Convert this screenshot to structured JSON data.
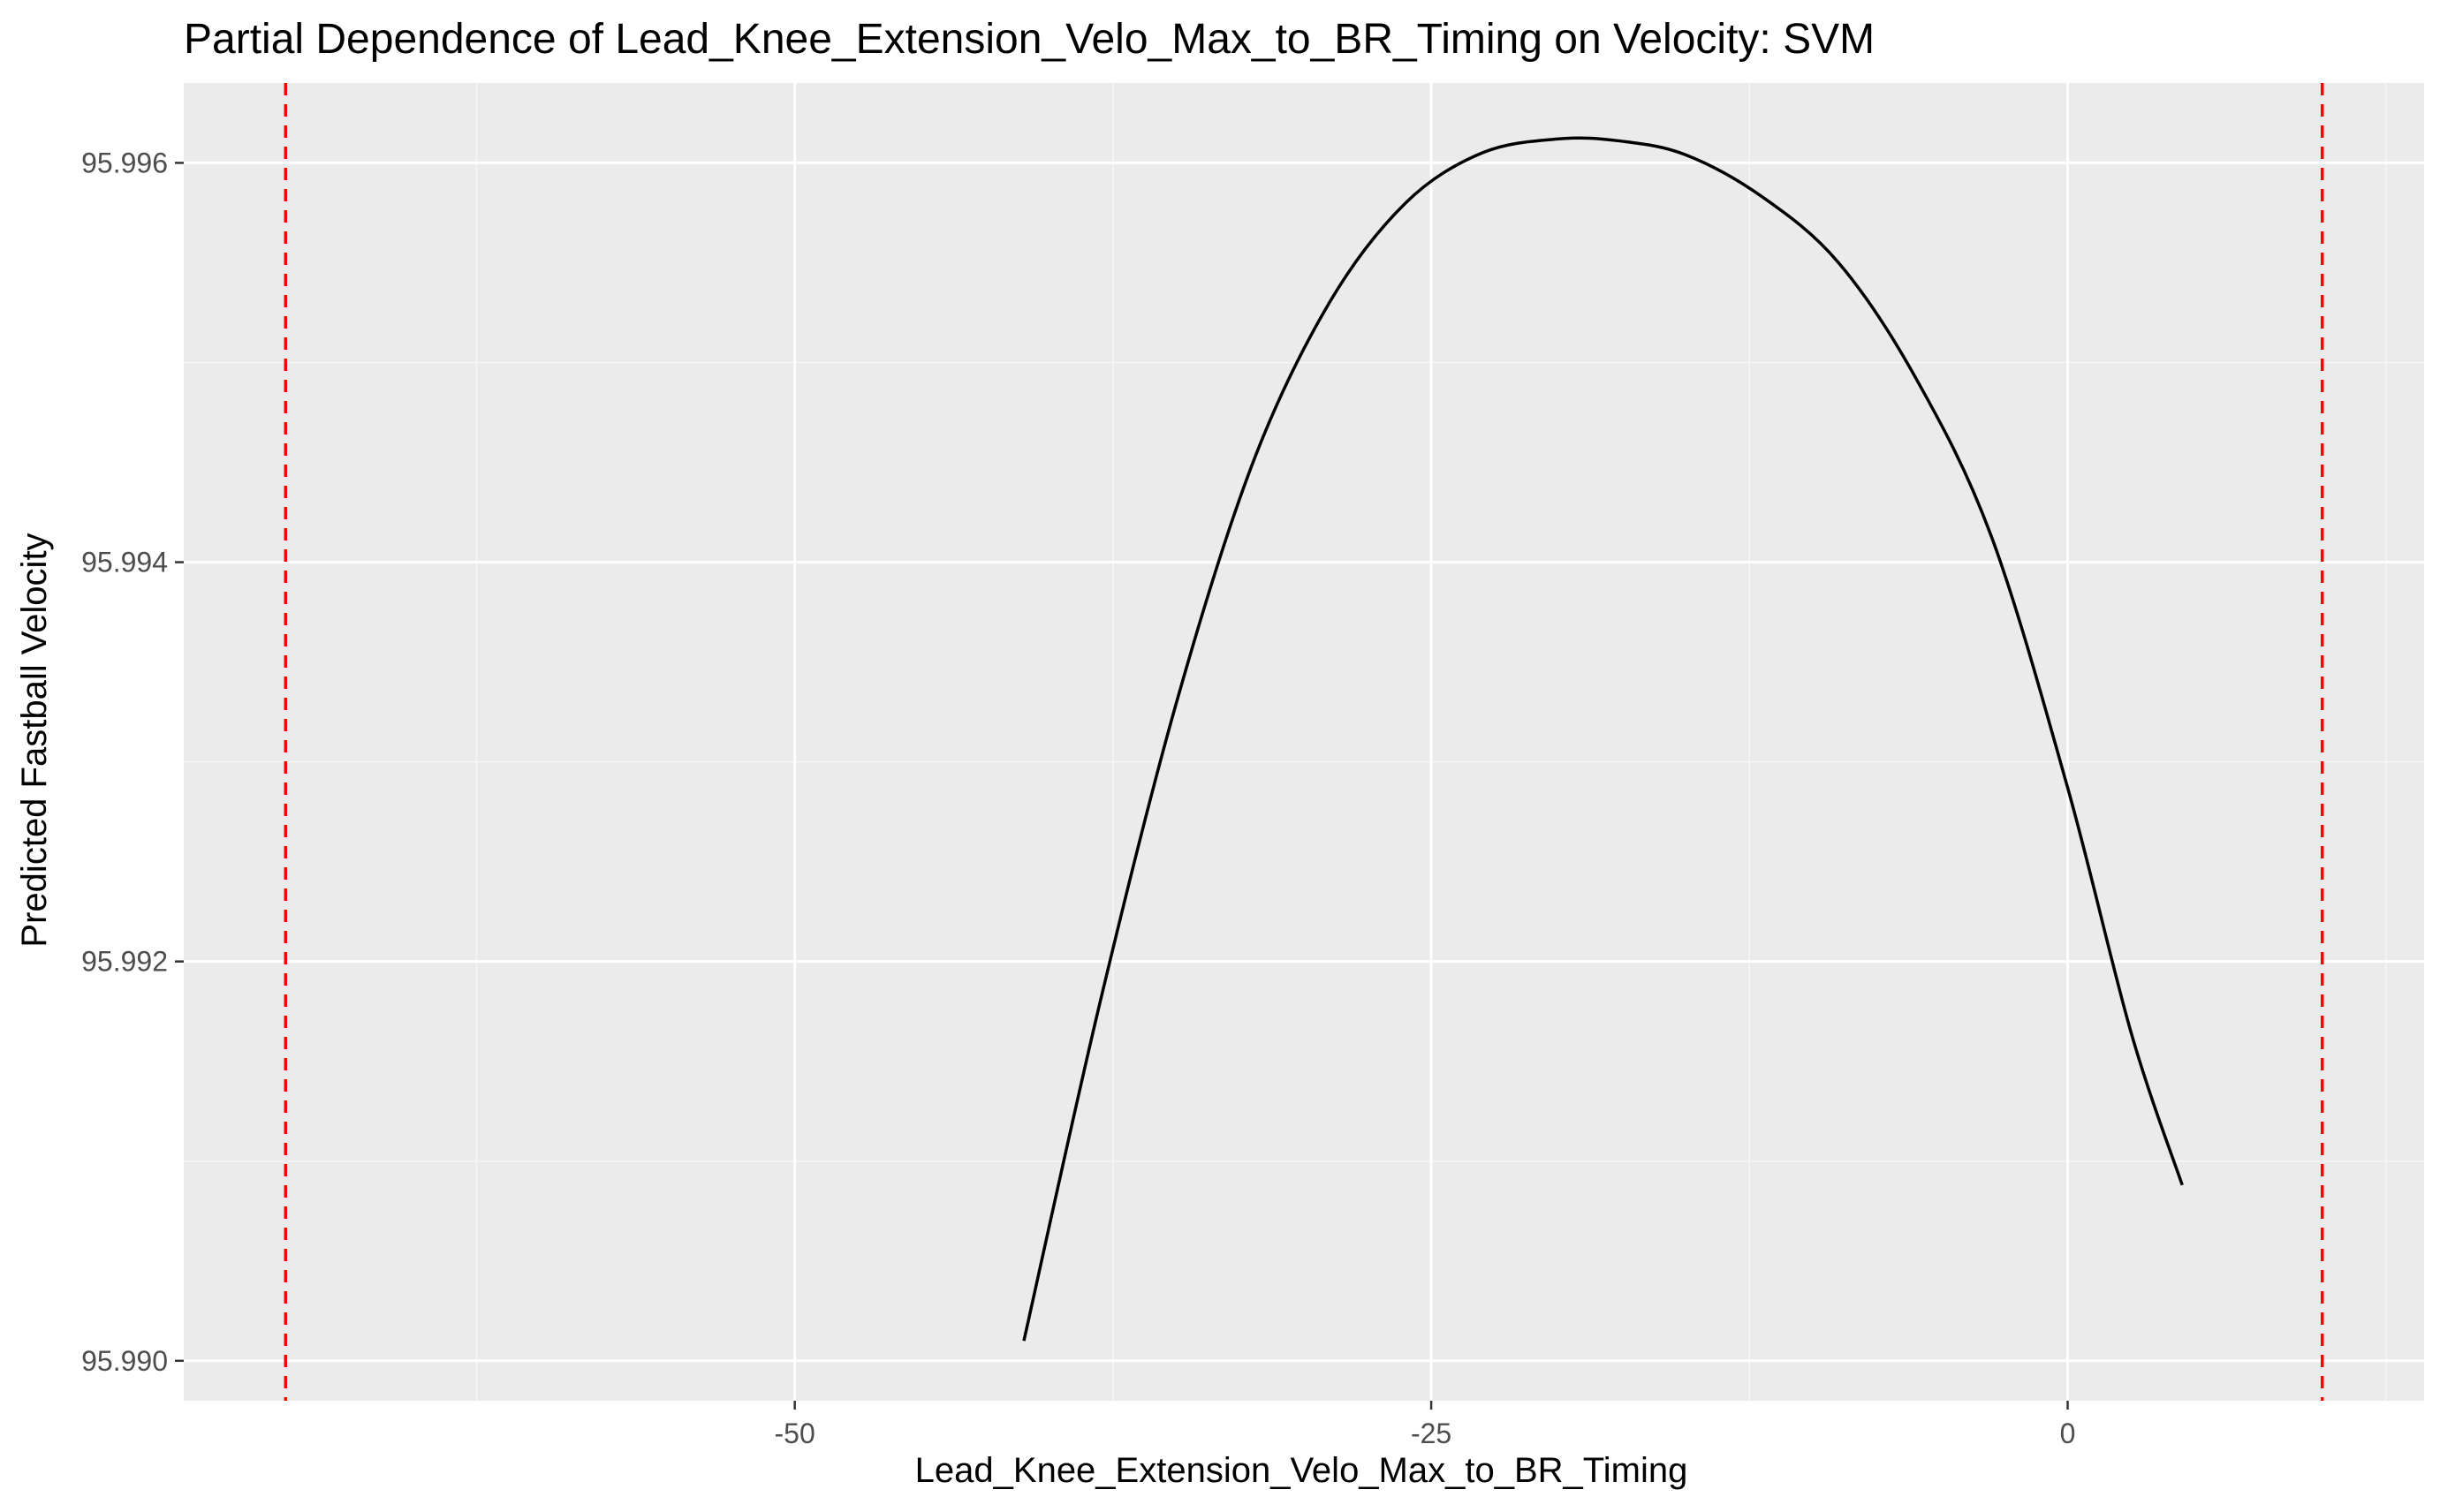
{
  "chart_data": {
    "type": "line",
    "title": "Partial Dependence of Lead_Knee_Extension_Velo_Max_to_BR_Timing on Velocity: SVM",
    "xlabel": "Lead_Knee_Extension_Velo_Max_to_BR_Timing",
    "ylabel": "Predicted Fastball Velocity",
    "xlim": [
      -74,
      14
    ],
    "ylim": [
      95.9898,
      95.9964
    ],
    "x_ticks": [
      -50,
      -25,
      0
    ],
    "x_tick_labels": [
      "-50",
      "-25",
      "0"
    ],
    "x_minor_ticks": [
      -62.5,
      -37.5,
      -12.5,
      12.5
    ],
    "y_ticks": [
      95.99,
      95.992,
      95.994,
      95.996
    ],
    "y_tick_labels": [
      "95.990",
      "95.992",
      "95.994",
      "95.996"
    ],
    "y_minor_ticks": [
      95.991,
      95.993,
      95.995
    ],
    "grid": true,
    "series": [
      {
        "color": "#000000",
        "x": [
          -41.0,
          -38.0,
          -35.0,
          -32.0,
          -29.0,
          -26.0,
          -23.0,
          -20.0,
          -17.6,
          -15.0,
          -12.0,
          -9.0,
          -6.0,
          -3.0,
          0.0,
          2.5,
          4.5
        ],
        "y": [
          95.9901,
          95.9918,
          95.9933,
          95.9945,
          95.9953,
          95.9958,
          95.99605,
          95.99612,
          95.99611,
          95.99604,
          95.99583,
          95.9955,
          95.99493,
          95.99413,
          95.99287,
          95.99164,
          95.99088
        ]
      }
    ],
    "reference_lines": [
      {
        "axis": "x",
        "value": -70.0,
        "color": "#ff0000",
        "style": "dashed"
      },
      {
        "axis": "x",
        "value": 10.0,
        "color": "#ff0000",
        "style": "dashed"
      }
    ],
    "colors": {
      "panel_background": "#ebebeb",
      "grid_major": "#ffffff",
      "grid_minor": "#f7f7f7",
      "tick_label": "#4d4d4d"
    }
  }
}
